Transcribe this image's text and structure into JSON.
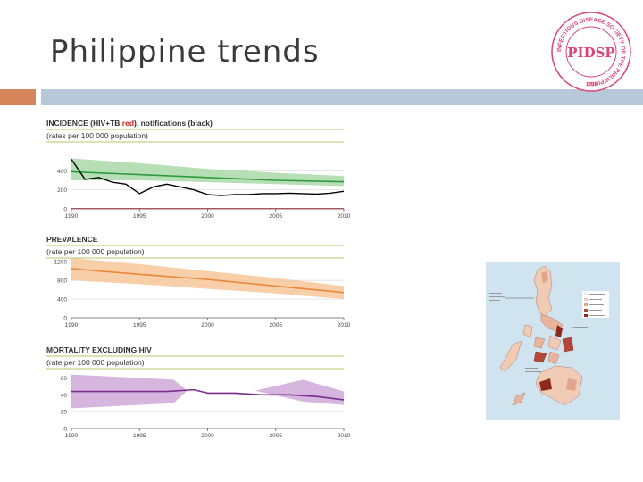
{
  "slide": {
    "title": "Philippine trends"
  },
  "logo": {
    "ring_text": "INFECTIOUS DISEASE SOCIETY OF THE PHILIPPINES",
    "monogram": "PIDSP",
    "year": "1993"
  },
  "colors": {
    "accent": "#d6845a",
    "band": "#b7c8d8",
    "incidence": "#2e9a3e",
    "incidence_band": "#a9d9a9",
    "notification": "#000000",
    "hiv_tb": "#d42020",
    "prevalence": "#e8883a",
    "prevalence_band": "#f8c79a",
    "mortality": "#7b2d8e",
    "mortality_band": "#cfa8d8",
    "logo": "#d9467a"
  },
  "chart_data": [
    {
      "type": "line",
      "title": "INCIDENCE (HIV+TB red), notifications (black)",
      "title_parts": {
        "a": "INCIDENCE (HIV+TB ",
        "b": "red",
        "c": "), notifications (black)"
      },
      "ylabel": "(rates per 100 000 population)",
      "x_ticks": [
        "1990",
        "1995",
        "2000",
        "2005",
        "2010"
      ],
      "y_ticks": [
        {
          "v": 0,
          "label": "0"
        },
        {
          "v": 200,
          "label": "200"
        },
        {
          "v": 400,
          "label": "400"
        }
      ],
      "xlim": [
        1990,
        2010
      ],
      "ylim": [
        0,
        600
      ],
      "series": [
        {
          "role": "band",
          "x": [
            1990,
            1995,
            2000,
            2005,
            2010
          ],
          "lower": [
            300,
            300,
            280,
            260,
            240
          ],
          "upper": [
            530,
            480,
            420,
            380,
            345
          ]
        },
        {
          "role": "estimate",
          "x": [
            1990,
            1995,
            2000,
            2005,
            2010
          ],
          "y": [
            390,
            360,
            330,
            300,
            285
          ]
        },
        {
          "role": "notifications",
          "x": [
            1990,
            1991,
            1992,
            1993,
            1994,
            1995,
            1996,
            1997,
            1998,
            1999,
            2000,
            2001,
            2002,
            2003,
            2004,
            2005,
            2006,
            2007,
            2008,
            2009,
            2010
          ],
          "y": [
            520,
            310,
            330,
            280,
            260,
            160,
            230,
            260,
            230,
            200,
            150,
            140,
            150,
            150,
            160,
            160,
            165,
            160,
            155,
            165,
            185
          ]
        },
        {
          "role": "hiv_tb",
          "x": [
            1990,
            2010
          ],
          "y": [
            3,
            3
          ]
        }
      ]
    },
    {
      "type": "line",
      "title": "PREVALENCE",
      "ylabel": "(rate per 100 000 population)",
      "x_ticks": [
        "1990",
        "1995",
        "2000",
        "2005",
        "2010"
      ],
      "y_ticks": [
        {
          "v": 0,
          "label": "0"
        },
        {
          "v": 400,
          "label": "400"
        },
        {
          "v": 800,
          "label": "800"
        },
        {
          "v": 1200,
          "label": "1200"
        }
      ],
      "xlim": [
        1990,
        2010
      ],
      "ylim": [
        0,
        1300
      ],
      "series": [
        {
          "role": "band",
          "x": [
            1990,
            1995,
            2000,
            2005,
            2010
          ],
          "lower": [
            800,
            720,
            620,
            520,
            400
          ],
          "upper": [
            1280,
            1150,
            1000,
            850,
            680
          ]
        },
        {
          "role": "estimate",
          "x": [
            1990,
            1995,
            2000,
            2005,
            2010
          ],
          "y": [
            1050,
            930,
            820,
            680,
            540
          ]
        }
      ]
    },
    {
      "type": "line",
      "title": "MORTALITY EXCLUDING HIV",
      "ylabel": "(rate per 100 000 population)",
      "x_ticks": [
        "1990",
        "1995",
        "2000",
        "2005",
        "2010"
      ],
      "y_ticks": [
        {
          "v": 0,
          "label": "0"
        },
        {
          "v": 20,
          "label": "20"
        },
        {
          "v": 40,
          "label": "40"
        },
        {
          "v": 60,
          "label": "60"
        }
      ],
      "xlim": [
        1990,
        2010
      ],
      "ylim": [
        0,
        70
      ],
      "series": [
        {
          "role": "band",
          "x": [
            1990,
            1997.5,
            1998.5,
            2003.5,
            2007,
            2010
          ],
          "lower": [
            24,
            30,
            45,
            45,
            32,
            28
          ],
          "upper": [
            64,
            58,
            45,
            45,
            58,
            44
          ]
        },
        {
          "role": "estimate",
          "x": [
            1990,
            1997,
            1999,
            2000,
            2002,
            2004,
            2006,
            2008,
            2010
          ],
          "y": [
            44,
            44,
            46,
            42,
            42,
            40,
            40,
            38,
            34
          ]
        }
      ]
    }
  ]
}
